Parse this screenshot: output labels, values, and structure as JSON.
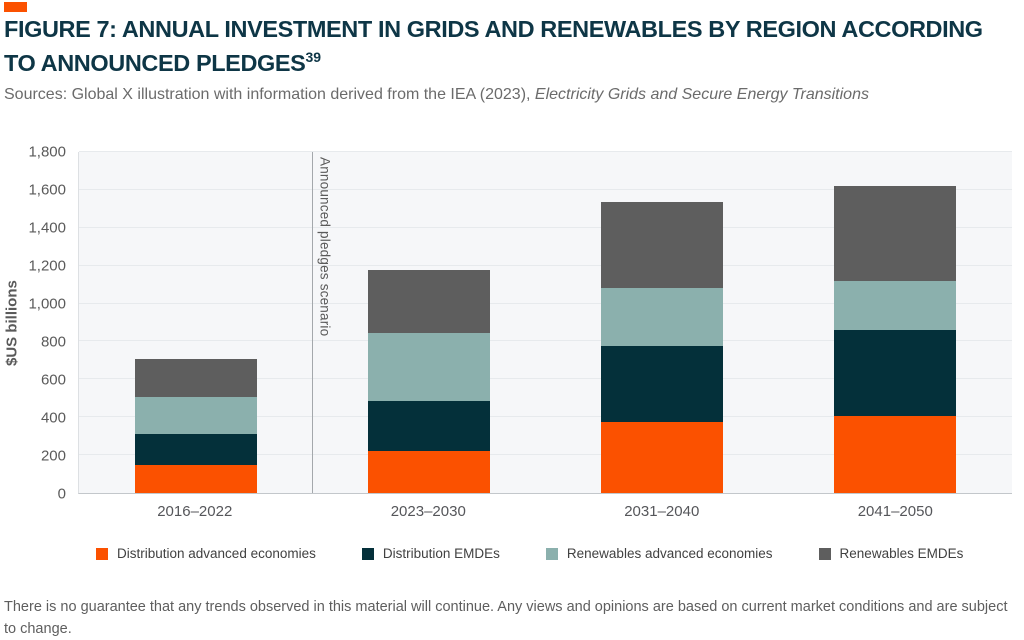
{
  "header": {
    "title_line1": "FIGURE 7: ANNUAL INVESTMENT IN GRIDS AND RENEWABLES BY REGION ACCORDING",
    "title_line2": "TO ANNOUNCED PLEDGES",
    "title_superscript": "39",
    "sources_prefix": "Sources: Global X illustration with information derived from the IEA (2023), ",
    "sources_italic": "Electricity Grids and Secure Energy Transitions"
  },
  "chart_data": {
    "type": "bar",
    "stacked": true,
    "ylabel": "$US billions",
    "ylim": [
      0,
      1800
    ],
    "ytick_interval": 200,
    "ytick_labels": [
      "0",
      "200",
      "400",
      "600",
      "800",
      "1,000",
      "1,200",
      "1,400",
      "1,600",
      "1,800"
    ],
    "categories": [
      "2016–2022",
      "2023–2030",
      "2031–2040",
      "2041–2050"
    ],
    "series": [
      {
        "name": "Distribution advanced economies",
        "color": "#FB5100",
        "values": [
          150,
          220,
          375,
          405
        ]
      },
      {
        "name": "Distribution EMDEs",
        "color": "#04303A",
        "values": [
          160,
          265,
          400,
          455
        ]
      },
      {
        "name": "Renewables advanced economies",
        "color": "#8BB0AD",
        "values": [
          195,
          360,
          305,
          260
        ]
      },
      {
        "name": "Renewables EMDEs",
        "color": "#5E5E5E",
        "values": [
          205,
          330,
          455,
          500
        ]
      }
    ],
    "totals": [
      710,
      1175,
      1535,
      1620
    ],
    "annotation": {
      "label": "Announced pledges scenario",
      "position": "after first category"
    },
    "grid": true,
    "legend_position": "bottom",
    "plot_background": "#F6F7F9"
  },
  "footer": {
    "disclaimer": "There is no guarantee that any trends observed in this material will continue. Any views and opinions are based on current market conditions and are subject to change."
  },
  "colors": {
    "accent_orange": "#FB5100",
    "title_teal": "#0E3646"
  }
}
